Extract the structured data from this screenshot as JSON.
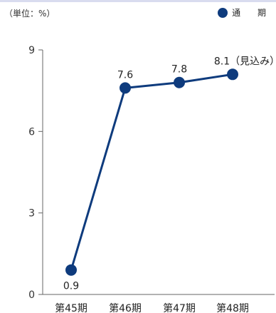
{
  "header": {
    "unit": "（単位：%）"
  },
  "legend": {
    "label": "通 期",
    "color": "#0e3b7d"
  },
  "chart_data": {
    "type": "line",
    "categories": [
      "第45期",
      "第46期",
      "第47期",
      "第48期"
    ],
    "series": [
      {
        "name": "通 期",
        "values": [
          0.9,
          7.6,
          7.8,
          8.1
        ],
        "color": "#0e3b7d"
      }
    ],
    "data_labels": [
      "0.9",
      "7.6",
      "7.8",
      "8.1（見込み）"
    ],
    "y_ticks": [
      0,
      3,
      6,
      9
    ],
    "ylim": [
      0,
      9
    ],
    "grid": false,
    "legend_position": "top-right"
  }
}
